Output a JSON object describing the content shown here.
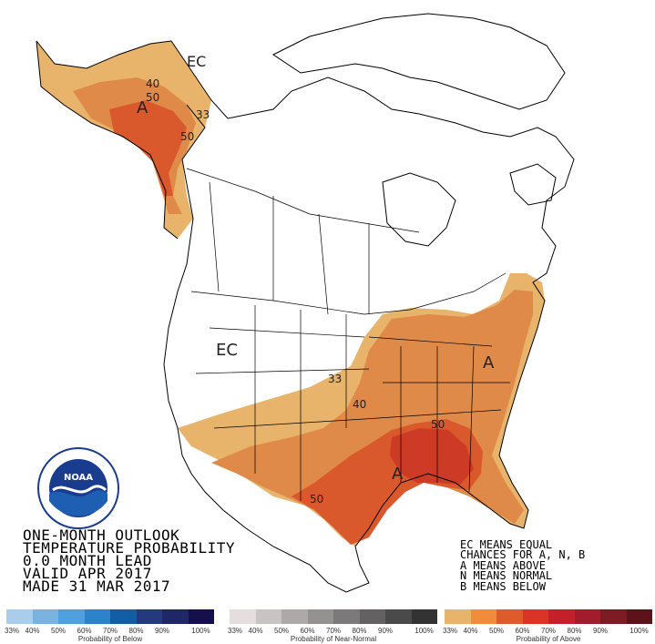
{
  "title_lines": [
    "ONE-MONTH OUTLOOK",
    "TEMPERATURE PROBABILITY",
    "0.0 MONTH LEAD",
    "VALID APR 2017",
    "MADE 31 MAR 2017"
  ],
  "legend_notes": [
    "EC MEANS EQUAL",
    "CHANCES FOR A, N, B",
    "A MEANS ABOVE",
    "N MEANS NORMAL",
    "B MEANS BELOW"
  ],
  "map_labels": {
    "ec_alaska": "EC",
    "alaska_40": "40",
    "alaska_50": "50",
    "alaska_a": "A",
    "alaska_33": "33",
    "alaska_50b": "50",
    "ec_west": "EC",
    "east_33": "33",
    "east_40": "40",
    "east_50": "50",
    "east_a": "A",
    "south_a": "A",
    "south_50": "50"
  },
  "logo_text": "NOAA",
  "scales": {
    "below": {
      "caption": "Probability of Below",
      "colors": [
        "#a9cdea",
        "#7ab2e0",
        "#4ea0de",
        "#2c83c9",
        "#115ea4",
        "#253a7c",
        "#1f2766",
        "#15104a"
      ],
      "ticks": [
        "33%",
        "40%",
        "50%",
        "60%",
        "70%",
        "80%",
        "90%",
        "100%"
      ]
    },
    "normal": {
      "caption": "Probability of Near-Normal",
      "colors": [
        "#e6dede",
        "#c9c4c4",
        "#ada9a9",
        "#949191",
        "#7b7979",
        "#636161",
        "#4b4a4a",
        "#333333"
      ],
      "ticks": [
        "33%",
        "40%",
        "50%",
        "60%",
        "70%",
        "80%",
        "90%",
        "100%"
      ]
    },
    "above": {
      "caption": "Probability of Above",
      "colors": [
        "#e8b36a",
        "#f08c3c",
        "#de5b2c",
        "#d93425",
        "#c4202c",
        "#a11d2b",
        "#7c1b24",
        "#5b1218"
      ],
      "ticks": [
        "33%",
        "40%",
        "50%",
        "60%",
        "70%",
        "80%",
        "90%",
        "100%"
      ]
    }
  },
  "colors": {
    "above_33": "#e8b36a",
    "above_40": "#e08a4a",
    "above_50": "#d9582c",
    "above_60": "#cc3324",
    "coast": "#000000",
    "water": "#ffffff"
  }
}
